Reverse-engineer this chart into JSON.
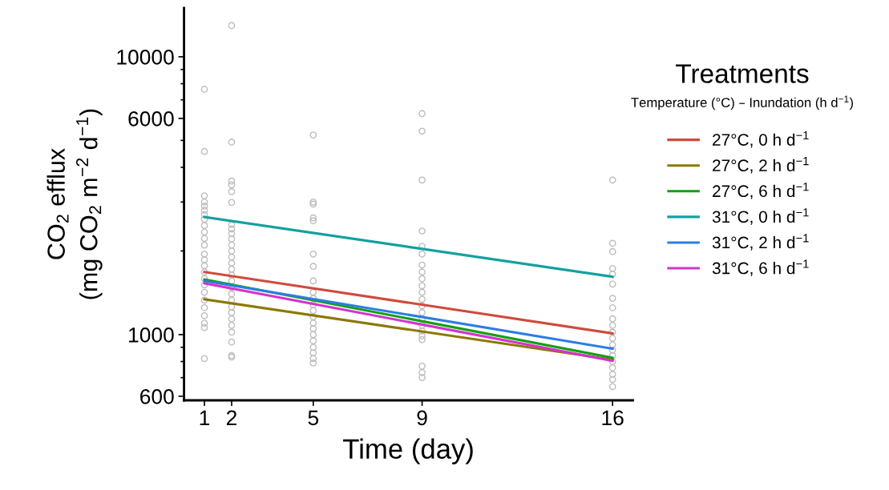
{
  "chart_data": {
    "type": "line",
    "xlabel": "Time (day)",
    "ylabel": "CO$_{2}$ efflux\n(mg CO$_{2}$ m$^{−2}$ d$^{−1}$)",
    "legend_title": "Treatments",
    "annotations": [
      "Temperature (°C) – Inundation (h d$^{−1}$)"
    ],
    "log": "y",
    "xlim": [
      0.25,
      16.75
    ],
    "xticks": [
      1,
      2,
      5,
      9,
      16
    ],
    "ylim": [
      580,
      15000
    ],
    "yticks": [
      600,
      {
        "value": 700,
        "label": null
      },
      {
        "value": 800,
        "label": null
      },
      {
        "value": 900,
        "label": null
      },
      1000,
      {
        "value": 2000,
        "label": null
      },
      {
        "value": 3000,
        "label": null
      },
      {
        "value": 4000,
        "label": null
      },
      {
        "value": 5000,
        "label": null
      },
      6000,
      {
        "value": 7000,
        "label": null
      },
      {
        "value": 8000,
        "label": null
      },
      {
        "value": 9000,
        "label": null
      },
      10000
    ],
    "grid": false,
    "legend": "right",
    "marker": "none",
    "line_style": "solid",
    "series": [
      {
        "type": "scatter",
        "marker": "circle",
        "color": "#bdbdbd",
        "x": [
          1,
          1,
          1,
          1,
          1,
          1,
          1,
          1,
          1,
          1,
          1,
          1,
          1,
          1,
          1,
          1,
          1,
          1,
          1,
          1,
          1,
          1,
          1,
          1,
          1,
          2,
          2,
          2,
          2,
          2,
          2,
          2,
          2,
          2,
          2,
          2,
          2,
          2,
          2,
          2,
          2,
          2,
          2,
          2,
          2,
          2,
          2,
          2,
          2,
          2,
          2,
          2,
          2,
          5,
          5,
          5,
          5,
          5,
          5,
          5,
          5,
          5,
          5,
          5,
          5,
          5,
          5,
          5,
          5,
          5,
          5,
          5,
          5,
          5,
          9,
          9,
          9,
          9,
          9,
          9,
          9,
          9,
          9,
          9,
          9,
          9,
          9,
          9,
          9,
          9,
          9,
          9,
          9,
          9,
          9,
          9,
          16,
          16,
          16,
          16,
          16,
          16,
          16,
          16,
          16,
          16,
          16,
          16,
          16,
          16,
          16,
          16,
          16,
          16,
          16,
          16
        ],
        "values": [
          7640,
          4560,
          3160,
          3000,
          2900,
          2800,
          2700,
          2600,
          2470,
          2340,
          2220,
          2100,
          1950,
          1860,
          1770,
          1680,
          1590,
          1510,
          1420,
          1330,
          1250,
          1170,
          1100,
          1060,
          820,
          12950,
          4930,
          3570,
          3460,
          3270,
          2990,
          2490,
          2400,
          2310,
          2210,
          2100,
          2000,
          1900,
          1810,
          1720,
          1640,
          1560,
          1480,
          1400,
          1330,
          1260,
          1200,
          1140,
          1080,
          1020,
          940,
          840,
          830,
          5230,
          3000,
          2950,
          2630,
          2570,
          1950,
          1760,
          1560,
          1420,
          1350,
          1280,
          1220,
          1160,
          1100,
          1050,
          1000,
          950,
          900,
          860,
          820,
          790,
          6240,
          5400,
          3600,
          2360,
          2080,
          1950,
          1780,
          1680,
          1590,
          1500,
          1420,
          1340,
          1270,
          1200,
          1140,
          1080,
          1030,
          990,
          960,
          770,
          730,
          700,
          3600,
          2130,
          1990,
          1730,
          1650,
          1520,
          1350,
          1250,
          1140,
          1080,
          1020,
          970,
          920,
          880,
          840,
          800,
          760,
          720,
          690,
          650
        ]
      },
      {
        "name": "27°C, 0 h d$^{−1}$",
        "color": "#cf4a3c",
        "x": [
          1,
          16
        ],
        "values": [
          1680,
          1010
        ]
      },
      {
        "name": "27°C, 2 h d$^{−1}$",
        "color": "#8c7800",
        "x": [
          1,
          16
        ],
        "values": [
          1340,
          812
        ]
      },
      {
        "name": "27°C, 6 h d$^{−1}$",
        "color": "#14a014",
        "x": [
          1,
          16
        ],
        "values": [
          1580,
          825
        ]
      },
      {
        "name": "31°C, 0 h d$^{−1}$",
        "color": "#12a0a0",
        "x": [
          1,
          16
        ],
        "values": [
          2650,
          1615
        ]
      },
      {
        "name": "31°C, 2 h d$^{−1}$",
        "color": "#2b7de3",
        "x": [
          1,
          16
        ],
        "values": [
          1560,
          890
        ]
      },
      {
        "name": "31°C, 6 h d$^{−1}$",
        "color": "#d235cc",
        "x": [
          1,
          16
        ],
        "values": [
          1530,
          805
        ]
      }
    ]
  }
}
